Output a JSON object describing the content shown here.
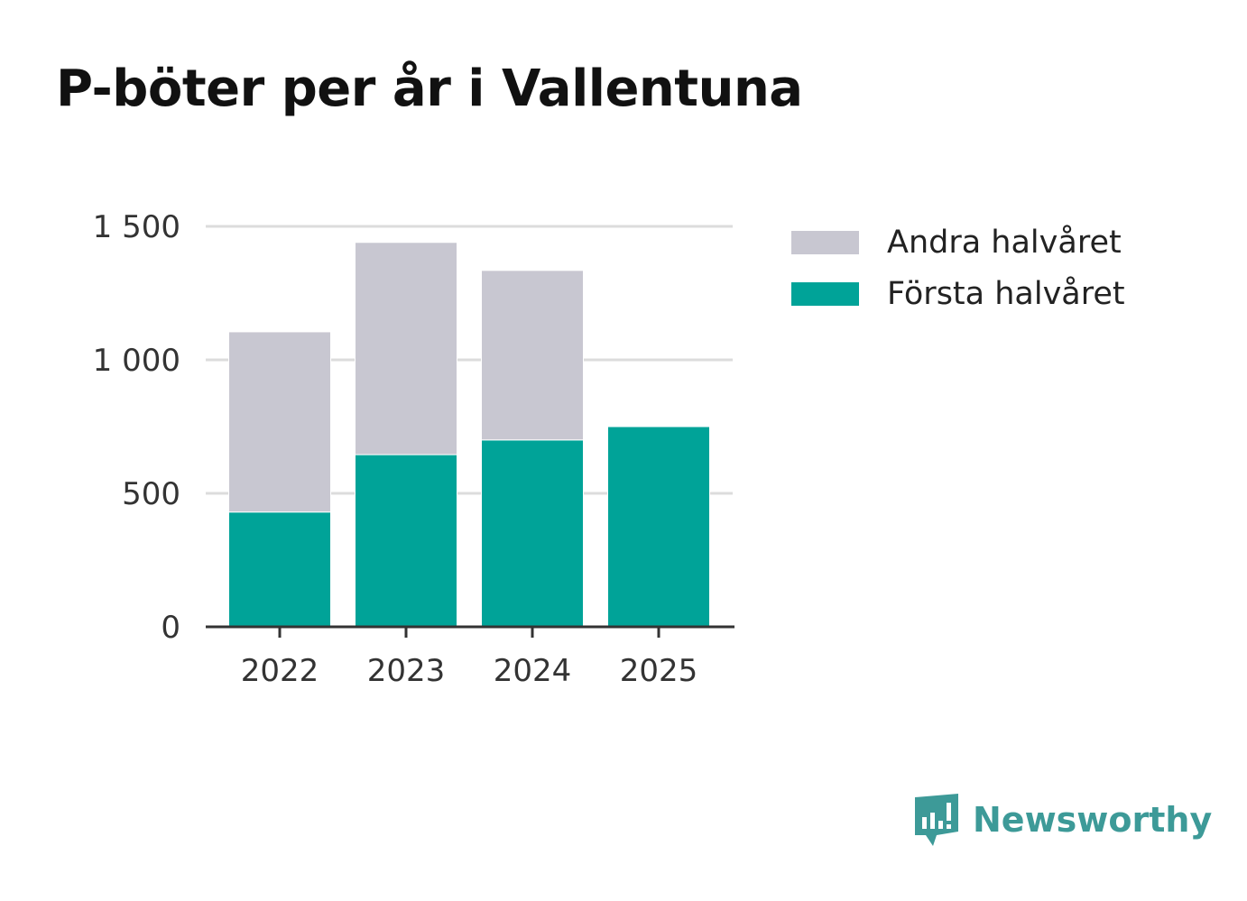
{
  "chart_data": {
    "type": "bar",
    "stacked": true,
    "title": "P-böter per år i Vallentuna",
    "categories": [
      "2022",
      "2023",
      "2024",
      "2025"
    ],
    "series": [
      {
        "name": "Första halvåret",
        "color": "#00a398",
        "values": [
          430,
          645,
          700,
          750
        ]
      },
      {
        "name": "Andra halvåret",
        "color": "#c8c7d1",
        "values": [
          675,
          795,
          635,
          0
        ]
      }
    ],
    "ylim": [
      0,
      1500
    ],
    "yticks": [
      0,
      500,
      1000,
      1500
    ],
    "ytick_labels": [
      "0",
      "500",
      "1 000",
      "1 500"
    ],
    "xlabel": "",
    "ylabel": "",
    "grid": true,
    "legend_position": "right"
  },
  "legend": {
    "items": [
      {
        "label": "Andra halvåret",
        "color": "#c8c7d1"
      },
      {
        "label": "Första halvåret",
        "color": "#00a398"
      }
    ]
  },
  "brand": {
    "name": "Newsworthy",
    "color": "#3d9a98"
  }
}
